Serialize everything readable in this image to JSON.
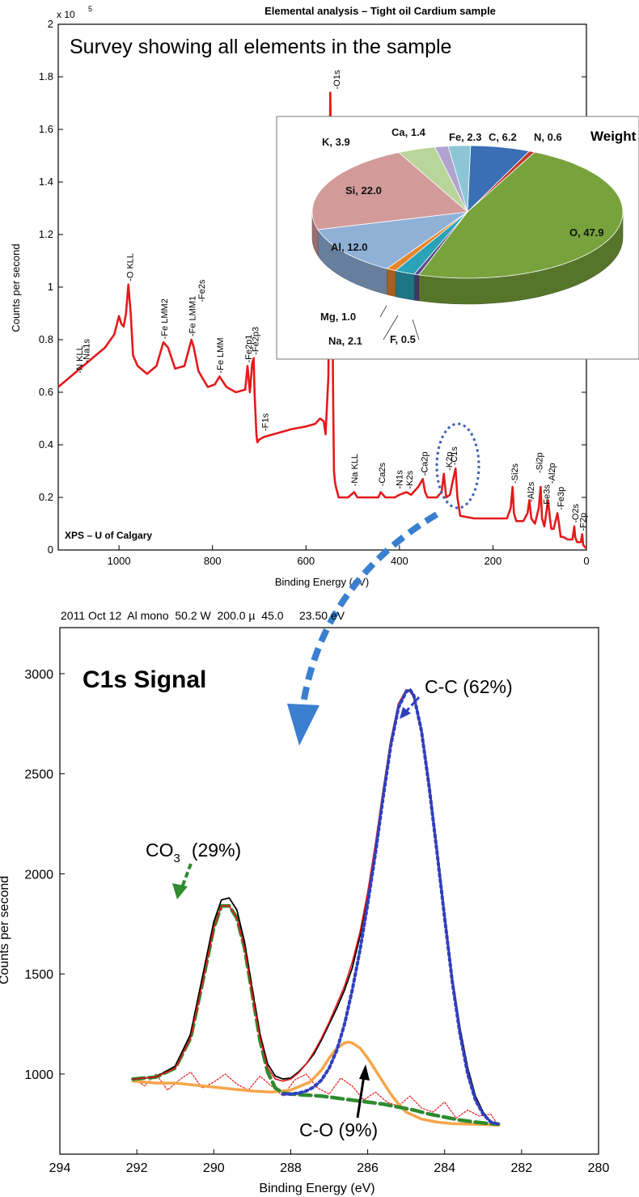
{
  "chart_data": [
    {
      "type": "line",
      "title": "Elemental analysis – Tight oil Cardium sample",
      "subtitle": "Survey showing all elements in the sample",
      "xlabel": "Binding Energy (eV)",
      "ylabel": "Counts per second",
      "y_multiplier": "x 10",
      "y_multiplier_exp": "5",
      "watermark": "XPS – U of Calgary",
      "xlim": [
        1130,
        0
      ],
      "ylim": [
        0,
        2
      ],
      "x_ticks": [
        1000,
        800,
        600,
        400,
        200,
        0
      ],
      "y_ticks": [
        0,
        0.2,
        0.4,
        0.6,
        0.8,
        1,
        1.2,
        1.4,
        1.6,
        1.8,
        2
      ],
      "y_tick_labels": [
        "0",
        "0.2",
        "0.4",
        "0.6",
        "0.8",
        "1",
        "1.2",
        "1.4",
        "1.6",
        "1.8",
        "2"
      ],
      "x_tick_labels": [
        "1000",
        "800",
        "600",
        "400",
        "200",
        "0"
      ],
      "grid": false,
      "series": [
        {
          "color": "#e41a1c",
          "x": [
            1130,
            1110,
            1090,
            1070,
            1050,
            1030,
            1010,
            1000,
            995,
            990,
            985,
            980,
            975,
            970,
            960,
            940,
            920,
            905,
            895,
            880,
            860,
            845,
            840,
            830,
            810,
            795,
            785,
            770,
            750,
            730,
            725,
            720,
            715,
            712,
            710,
            706,
            704,
            700,
            690,
            670,
            650,
            630,
            600,
            580,
            570,
            562,
            558,
            552,
            548,
            545,
            542,
            540,
            538,
            536,
            533,
            530,
            520,
            510,
            497,
            490,
            470,
            445,
            440,
            430,
            410,
            400,
            385,
            375,
            360,
            350,
            345,
            340,
            320,
            310,
            305,
            300,
            292,
            285,
            280,
            276,
            270,
            240,
            200,
            170,
            162,
            158,
            155,
            150,
            135,
            126,
            122,
            118,
            110,
            102,
            98,
            95,
            90,
            82,
            78,
            75,
            70,
            62,
            58,
            55,
            50,
            40,
            30,
            26,
            24,
            20,
            12,
            9,
            7,
            3,
            0
          ],
          "y": [
            0.62,
            0.65,
            0.68,
            0.71,
            0.74,
            0.77,
            0.82,
            0.89,
            0.86,
            0.85,
            0.9,
            1.01,
            0.9,
            0.74,
            0.7,
            0.67,
            0.7,
            0.79,
            0.77,
            0.69,
            0.7,
            0.8,
            0.77,
            0.68,
            0.62,
            0.63,
            0.66,
            0.62,
            0.6,
            0.61,
            0.7,
            0.6,
            0.71,
            0.73,
            0.6,
            0.44,
            0.41,
            0.42,
            0.43,
            0.44,
            0.45,
            0.46,
            0.47,
            0.48,
            0.5,
            0.49,
            0.44,
            0.66,
            1.74,
            1.3,
            0.6,
            0.3,
            0.26,
            0.24,
            0.22,
            0.2,
            0.2,
            0.2,
            0.22,
            0.2,
            0.2,
            0.2,
            0.22,
            0.2,
            0.2,
            0.21,
            0.22,
            0.21,
            0.24,
            0.27,
            0.22,
            0.2,
            0.2,
            0.22,
            0.29,
            0.2,
            0.21,
            0.27,
            0.31,
            0.2,
            0.13,
            0.12,
            0.12,
            0.12,
            0.16,
            0.24,
            0.14,
            0.11,
            0.11,
            0.14,
            0.19,
            0.12,
            0.1,
            0.16,
            0.24,
            0.12,
            0.09,
            0.19,
            0.12,
            0.08,
            0.08,
            0.14,
            0.09,
            0.05,
            0.05,
            0.04,
            0.04,
            0.09,
            0.05,
            0.03,
            0.03,
            0.06,
            0.02,
            0.01,
            0.01
          ]
        }
      ],
      "peak_labels": [
        {
          "x": 1085,
          "y": 0.66,
          "text": "N KLL"
        },
        {
          "x": 1070,
          "y": 0.7,
          "text": "Na1s"
        },
        {
          "x": 977,
          "y": 1.01,
          "text": "O KLL"
        },
        {
          "x": 903,
          "y": 0.79,
          "text": "Fe LMM2"
        },
        {
          "x": 844,
          "y": 0.8,
          "text": "Fe LMM1"
        },
        {
          "x": 824,
          "y": 0.93,
          "text": "Fe2s"
        },
        {
          "x": 784,
          "y": 0.66,
          "text": "Fe LMM"
        },
        {
          "x": 723,
          "y": 0.7,
          "text": "Fe2p1"
        },
        {
          "x": 709,
          "y": 0.73,
          "text": "Fe2p3"
        },
        {
          "x": 688,
          "y": 0.44,
          "text": "F1s"
        },
        {
          "x": 535,
          "y": 1.74,
          "text": "O1s"
        },
        {
          "x": 497,
          "y": 0.23,
          "text": "Na KLL"
        },
        {
          "x": 438,
          "y": 0.23,
          "text": "Ca2s"
        },
        {
          "x": 401,
          "y": 0.22,
          "text": "N1s"
        },
        {
          "x": 379,
          "y": 0.22,
          "text": "K2s"
        },
        {
          "x": 347,
          "y": 0.27,
          "text": "Ca2p"
        },
        {
          "x": 294,
          "y": 0.29,
          "text": "K2p"
        },
        {
          "x": 284,
          "y": 0.31,
          "text": "C1s"
        },
        {
          "x": 154,
          "y": 0.24,
          "text": "Si2s"
        },
        {
          "x": 119,
          "y": 0.17,
          "text": "Al2s"
        },
        {
          "x": 101,
          "y": 0.28,
          "text": "Si2p"
        },
        {
          "x": 86,
          "y": 0.15,
          "text": "Fe3s"
        },
        {
          "x": 74,
          "y": 0.24,
          "text": "Al2p"
        },
        {
          "x": 55,
          "y": 0.14,
          "text": "Fe3p"
        },
        {
          "x": 24,
          "y": 0.09,
          "text": "O2s"
        },
        {
          "x": 8,
          "y": 0.06,
          "text": "F2p"
        }
      ]
    },
    {
      "type": "pie",
      "title": "Weight",
      "categories": [
        "C",
        "N",
        "O",
        "F",
        "Na",
        "Mg",
        "Al",
        "Si",
        "K",
        "Ca",
        "Fe"
      ],
      "values": [
        6.2,
        0.6,
        47.9,
        0.5,
        2.1,
        1.0,
        12.0,
        22.0,
        3.9,
        1.4,
        2.3
      ],
      "labels": [
        "C, 6.2",
        "N, 0.6",
        "O, 47.9",
        "F, 0.5",
        "Na, 2.1",
        "Mg, 1.0",
        "Al, 12.0",
        "Si, 22.0",
        "K, 3.9",
        "Ca, 1.4",
        "Fe, 2.3"
      ],
      "colors": [
        "#3a6fb5",
        "#c0392b",
        "#78a23c",
        "#5b4a8e",
        "#2aa3b8",
        "#e8852a",
        "#8fb1d8",
        "#d39a9a",
        "#b9d59a",
        "#b1a3cf",
        "#8cc6d6"
      ]
    },
    {
      "type": "line",
      "header": "2011 Oct 12  Al mono  50.2 W  200.0 µ  45.0     23.50 eV",
      "title": "C1s Signal",
      "xlabel": "Binding Energy (eV)",
      "ylabel": "Counts per second",
      "xlim": [
        294,
        280
      ],
      "ylim": [
        600,
        3230
      ],
      "x_ticks": [
        294,
        292,
        290,
        288,
        286,
        284,
        282,
        280
      ],
      "y_ticks": [
        1000,
        1500,
        2000,
        2500,
        3000
      ],
      "x_tick_labels": [
        "294",
        "292",
        "290",
        "288",
        "286",
        "284",
        "282",
        "280"
      ],
      "y_tick_labels": [
        "1000",
        "1500",
        "2000",
        "2500",
        "3000"
      ],
      "grid": false,
      "annotations": [
        {
          "text": "C-C (62%)",
          "x": 284.9,
          "y": 2920
        },
        {
          "text": "CO3 (29%)",
          "x": 289.7,
          "y": 1860
        },
        {
          "text": "C-O (9%)",
          "x": 286.5,
          "y": 1150
        }
      ],
      "annotation_parts": {
        "cc": "C-C (62%)",
        "co3_main": "CO",
        "co3_sub": "3",
        "co3_pct": "(29%)",
        "co": "C-O (9%)"
      },
      "series": [
        {
          "style": "measured",
          "color": "#000000",
          "x": [
            292.1,
            291.5,
            291.0,
            290.6,
            290.3,
            290.0,
            289.8,
            289.6,
            289.4,
            289.2,
            289.0,
            288.8,
            288.6,
            288.4,
            288.2,
            288.0,
            287.8,
            287.6,
            287.4,
            287.2,
            287.0,
            286.8,
            286.6,
            286.4,
            286.2,
            286.0,
            285.8,
            285.6,
            285.4,
            285.2,
            285.0,
            284.9,
            284.8,
            284.6,
            284.4,
            284.2,
            284.0,
            283.8,
            283.6,
            283.4,
            283.2,
            283.0,
            282.8,
            282.6
          ],
          "y": [
            975,
            985,
            1040,
            1200,
            1480,
            1760,
            1870,
            1880,
            1820,
            1660,
            1420,
            1200,
            1050,
            990,
            975,
            980,
            1010,
            1050,
            1100,
            1170,
            1250,
            1330,
            1420,
            1530,
            1690,
            1890,
            2130,
            2400,
            2660,
            2850,
            2910,
            2920,
            2890,
            2720,
            2450,
            2130,
            1800,
            1480,
            1230,
            1030,
            890,
            810,
            760,
            750
          ]
        },
        {
          "style": "envelope",
          "color": "#e41a1c",
          "x": [
            292.1,
            291.5,
            291.0,
            290.6,
            290.3,
            290.0,
            289.8,
            289.6,
            289.4,
            289.2,
            289.0,
            288.8,
            288.6,
            288.4,
            288.2,
            288.0,
            287.8,
            287.6,
            287.4,
            287.2,
            287.0,
            286.8,
            286.6,
            286.4,
            286.2,
            286.0,
            285.8,
            285.6,
            285.4,
            285.2,
            285.0,
            284.9,
            284.8,
            284.6,
            284.4,
            284.2,
            284.0,
            283.8,
            283.6,
            283.4,
            283.2,
            283.0,
            282.8,
            282.6
          ],
          "y": [
            975,
            985,
            1030,
            1180,
            1450,
            1730,
            1840,
            1840,
            1780,
            1630,
            1400,
            1180,
            1030,
            975,
            965,
            975,
            1005,
            1050,
            1110,
            1180,
            1260,
            1350,
            1440,
            1560,
            1710,
            1910,
            2150,
            2420,
            2670,
            2850,
            2920,
            2910,
            2880,
            2710,
            2430,
            2110,
            1780,
            1460,
            1200,
            1010,
            880,
            800,
            760,
            750
          ]
        },
        {
          "style": "residual",
          "color": "#e41a1c",
          "x": [
            292.1,
            291.8,
            291.5,
            291.2,
            290.9,
            290.6,
            290.3,
            290.0,
            289.7,
            289.4,
            289.1,
            288.8,
            288.5,
            288.2,
            287.9,
            287.6,
            287.3,
            287.0,
            286.7,
            286.4,
            286.1,
            285.8,
            285.5,
            285.2,
            284.9,
            284.6,
            284.3,
            284.0,
            283.7,
            283.4,
            283.1,
            282.8,
            282.6
          ],
          "y": [
            980,
            940,
            1000,
            920,
            970,
            1010,
            930,
            960,
            1000,
            950,
            920,
            990,
            940,
            890,
            970,
            1000,
            930,
            900,
            980,
            940,
            870,
            910,
            860,
            840,
            890,
            830,
            810,
            860,
            780,
            820,
            790,
            800,
            740
          ]
        },
        {
          "style": "CO3 component",
          "color": "#2e8b2e",
          "x": [
            292.1,
            291.5,
            291.0,
            290.6,
            290.3,
            290.0,
            289.8,
            289.6,
            289.4,
            289.2,
            289.0,
            288.8,
            288.6,
            288.4,
            288.2,
            288.0,
            287.6,
            287.2,
            286.8,
            286.4,
            286.0,
            285.6,
            285.2,
            284.8,
            284.4,
            284.0,
            283.6,
            283.2,
            282.8,
            282.6
          ],
          "y": [
            975,
            985,
            1030,
            1180,
            1450,
            1730,
            1840,
            1840,
            1780,
            1630,
            1400,
            1170,
            1010,
            930,
            905,
            900,
            895,
            890,
            880,
            870,
            860,
            850,
            835,
            820,
            800,
            785,
            770,
            760,
            752,
            750
          ]
        },
        {
          "style": "C-C component",
          "color": "#2f3fbf",
          "x": [
            288.2,
            288.0,
            287.8,
            287.6,
            287.4,
            287.2,
            287.0,
            286.8,
            286.6,
            286.4,
            286.2,
            286.0,
            285.8,
            285.6,
            285.4,
            285.2,
            285.0,
            284.9,
            284.8,
            284.6,
            284.4,
            284.2,
            284.0,
            283.8,
            283.6,
            283.4,
            283.2,
            283.0,
            282.8,
            282.6
          ],
          "y": [
            900,
            900,
            905,
            915,
            935,
            970,
            1030,
            1120,
            1250,
            1420,
            1620,
            1850,
            2100,
            2380,
            2640,
            2830,
            2910,
            2920,
            2890,
            2710,
            2430,
            2110,
            1780,
            1460,
            1200,
            1000,
            870,
            800,
            760,
            750
          ]
        },
        {
          "style": "C-O component",
          "color": "#f5a64a",
          "x": [
            292.1,
            291.5,
            291.0,
            290.5,
            290.0,
            289.5,
            289.0,
            288.5,
            288.0,
            287.5,
            287.2,
            287.0,
            286.8,
            286.6,
            286.5,
            286.4,
            286.2,
            286.0,
            285.8,
            285.6,
            285.4,
            285.2,
            285.0,
            284.6,
            284.2,
            283.8,
            283.4,
            283.0,
            282.6
          ],
          "y": [
            965,
            955,
            955,
            945,
            935,
            925,
            915,
            910,
            920,
            960,
            1020,
            1080,
            1130,
            1155,
            1160,
            1155,
            1130,
            1080,
            1020,
            960,
            900,
            850,
            810,
            775,
            760,
            752,
            750,
            748,
            745
          ]
        }
      ]
    }
  ]
}
